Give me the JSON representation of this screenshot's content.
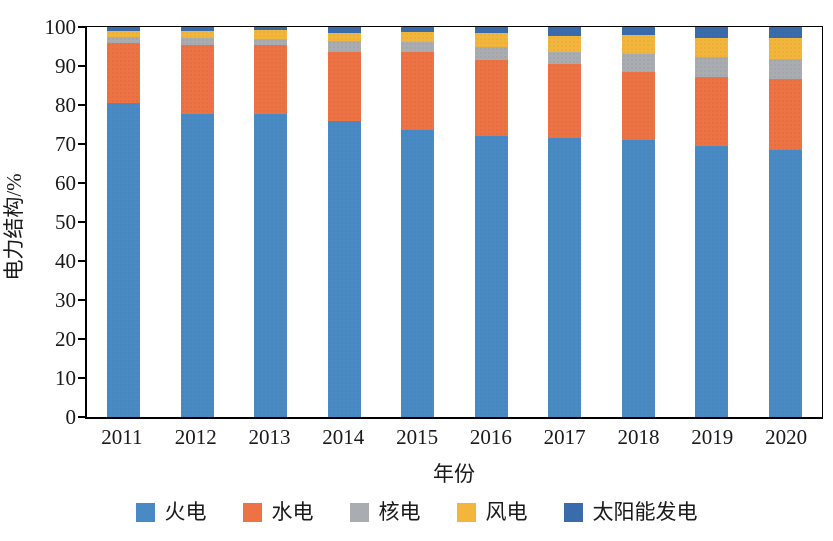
{
  "chart_data": {
    "type": "bar",
    "stacked": true,
    "unit": "%",
    "title": "",
    "xlabel": "年份",
    "ylabel": "电力结构/%",
    "categories": [
      "2011",
      "2012",
      "2013",
      "2014",
      "2015",
      "2016",
      "2017",
      "2018",
      "2019",
      "2020"
    ],
    "series": [
      {
        "name": "火电",
        "color": "#4A8AC4",
        "values": [
          80.5,
          77.6,
          77.7,
          76.0,
          73.5,
          72.0,
          71.5,
          71.0,
          69.5,
          68.5
        ]
      },
      {
        "name": "水电",
        "color": "#ED7344",
        "values": [
          15.3,
          17.8,
          17.7,
          17.7,
          20.1,
          19.5,
          19.0,
          17.5,
          17.6,
          18.2
        ]
      },
      {
        "name": "核电",
        "color": "#A9ACB0",
        "values": [
          1.7,
          1.7,
          1.5,
          2.6,
          2.6,
          3.4,
          3.1,
          4.6,
          5.2,
          5.2
        ]
      },
      {
        "name": "风电",
        "color": "#F2B63C",
        "values": [
          1.5,
          1.9,
          2.3,
          2.1,
          2.5,
          3.6,
          4.2,
          4.9,
          5.0,
          5.3
        ]
      },
      {
        "name": "太阳能发电",
        "color": "#3A6BAC",
        "values": [
          1.0,
          1.0,
          0.8,
          1.6,
          1.3,
          1.5,
          2.2,
          2.0,
          2.7,
          2.8
        ]
      }
    ],
    "ylim": [
      0,
      100
    ],
    "y_ticks": [
      0,
      10,
      20,
      30,
      40,
      50,
      60,
      70,
      80,
      90,
      100
    ],
    "grid": false,
    "legend_position": "bottom",
    "axis_color": "#000000",
    "background_color": "#FFFFFF"
  }
}
